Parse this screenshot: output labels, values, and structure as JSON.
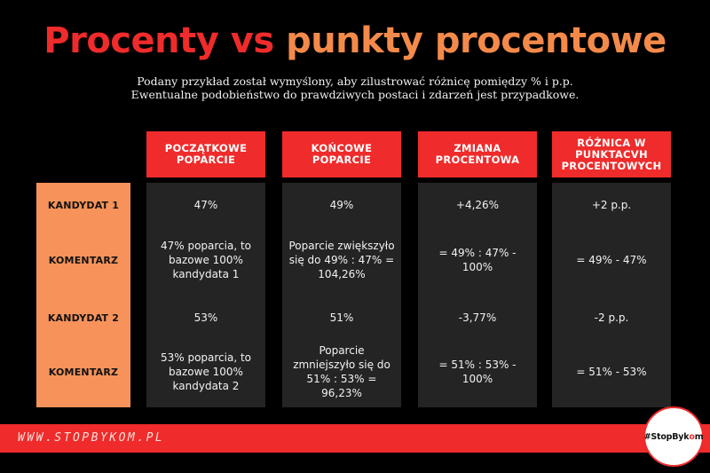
{
  "title": {
    "part1": "Procenty vs",
    "part2": "punkty procentowe"
  },
  "subtitle": {
    "line1": "Podany przykład został wymyślony, aby zilustrować różnicę pomiędzy % i p.p.",
    "line2": "Ewentualne podobieństwo do prawdziwych postaci i zdarzeń jest przypadkowe."
  },
  "columns": [
    {
      "label": "POCZĄTKOWE POPARCIE"
    },
    {
      "label": "KOŃCOWE POPARCIE"
    },
    {
      "label": "ZMIANA PROCENTOWA"
    },
    {
      "label": "RÓŻNICA W PUNKTACVH PROCENTOWYCH"
    }
  ],
  "rows": [
    {
      "label": "KANDYDAT 1",
      "cells": [
        "47%",
        "49%",
        "+4,26%",
        "+2 p.p."
      ]
    },
    {
      "label": "KOMENTARZ",
      "cells": [
        "47% poparcia, to bazowe 100% kandydata 1",
        "Poparcie zwiększyło się do 49% : 47% = 104,26%",
        "= 49% : 47% - 100%",
        "= 49% - 47%"
      ]
    },
    {
      "label": "KANDYDAT 2",
      "cells": [
        "53%",
        "51%",
        "-3,77%",
        "-2 p.p."
      ]
    },
    {
      "label": "KOMENTARZ",
      "cells": [
        "53% poparcia, to bazowe 100% kandydata 2",
        "Poparcie zmniejszyło się do 51% : 53% = 96,23%",
        "= 51% : 53% - 100%",
        "= 51% - 53%"
      ]
    }
  ],
  "footer": {
    "url": "WWW.STOPBYKOM.PL",
    "badge_part1": "#StopByk",
    "badge_part2": "o",
    "badge_part3": "m"
  },
  "colors": {
    "accent_red": "#ef2b2b",
    "accent_orange": "#f7935a",
    "cell_bg": "#242424",
    "background": "#000000"
  }
}
